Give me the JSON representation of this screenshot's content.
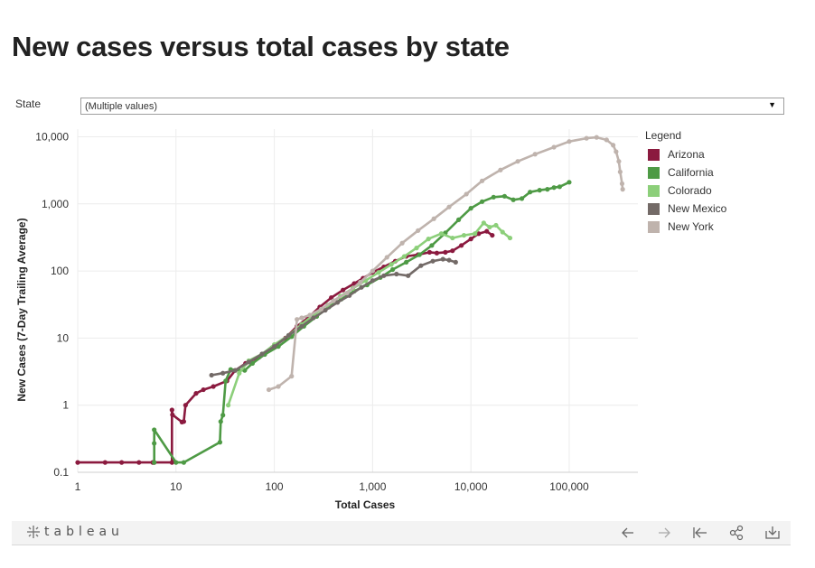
{
  "page": {
    "title": "New cases versus total cases by state"
  },
  "filter": {
    "label": "State",
    "value": "(Multiple values)"
  },
  "legend": {
    "title": "Legend"
  },
  "toolbar": {
    "brand": "+ t a b l e a u",
    "buttons": [
      "undo",
      "redo",
      "revert",
      "share",
      "download"
    ]
  },
  "chart_data": {
    "type": "line",
    "xlabel": "Total Cases",
    "ylabel": "New Cases (7-Day Trailing Average)",
    "x_scale": "log",
    "y_scale": "log",
    "xlim": [
      1,
      500000
    ],
    "ylim": [
      0.1,
      13000
    ],
    "x_ticks": [
      1,
      10,
      100,
      1000,
      10000,
      100000
    ],
    "x_tick_labels": [
      "1",
      "10",
      "100",
      "1,000",
      "10,000",
      "100,000"
    ],
    "y_ticks": [
      0.1,
      1,
      10,
      100,
      1000,
      10000
    ],
    "y_tick_labels": [
      "0.1",
      "1",
      "10",
      "100",
      "1,000",
      "10,000"
    ],
    "grid": true,
    "legend_position": "right",
    "series": [
      {
        "name": "Arizona",
        "color": "#8b1a3f",
        "points": [
          [
            1,
            0.14
          ],
          [
            1.9,
            0.14
          ],
          [
            2.8,
            0.14
          ],
          [
            4.2,
            0.14
          ],
          [
            5.8,
            0.14
          ],
          [
            6,
            0.14
          ],
          [
            9.1,
            0.14
          ],
          [
            9.1,
            0.85
          ],
          [
            9.2,
            0.72
          ],
          [
            11.5,
            0.56
          ],
          [
            12,
            0.57
          ],
          [
            12.5,
            1.0
          ],
          [
            16,
            1.5
          ],
          [
            19,
            1.7
          ],
          [
            24,
            1.9
          ],
          [
            33,
            2.3
          ],
          [
            40,
            3.3
          ],
          [
            51,
            4.2
          ],
          [
            70,
            5.2
          ],
          [
            95,
            7.2
          ],
          [
            130,
            10
          ],
          [
            170,
            15
          ],
          [
            220,
            20
          ],
          [
            290,
            29
          ],
          [
            380,
            40
          ],
          [
            500,
            52
          ],
          [
            650,
            65
          ],
          [
            800,
            78
          ],
          [
            1000,
            95
          ],
          [
            1300,
            115
          ],
          [
            1700,
            140
          ],
          [
            2200,
            165
          ],
          [
            2900,
            175
          ],
          [
            3800,
            190
          ],
          [
            4500,
            185
          ],
          [
            5500,
            190
          ],
          [
            6500,
            200
          ],
          [
            8000,
            240
          ],
          [
            10000,
            300
          ],
          [
            12000,
            360
          ],
          [
            14500,
            390
          ],
          [
            16500,
            340
          ]
        ]
      },
      {
        "name": "California",
        "color": "#4e9a45",
        "points": [
          [
            6,
            0.14
          ],
          [
            6,
            0.27
          ],
          [
            6,
            0.43
          ],
          [
            10,
            0.14
          ],
          [
            12,
            0.14
          ],
          [
            28,
            0.28
          ],
          [
            28.5,
            0.57
          ],
          [
            30,
            0.71
          ],
          [
            32,
            2.3
          ],
          [
            36,
            3.4
          ],
          [
            50,
            3.3
          ],
          [
            60,
            4.2
          ],
          [
            80,
            5.7
          ],
          [
            110,
            7.5
          ],
          [
            150,
            10.5
          ],
          [
            200,
            15
          ],
          [
            270,
            21
          ],
          [
            360,
            29
          ],
          [
            480,
            38
          ],
          [
            650,
            50
          ],
          [
            880,
            62
          ],
          [
            1200,
            80
          ],
          [
            1600,
            105
          ],
          [
            2200,
            135
          ],
          [
            3000,
            175
          ],
          [
            4000,
            240
          ],
          [
            5500,
            370
          ],
          [
            7500,
            580
          ],
          [
            10000,
            860
          ],
          [
            13000,
            1080
          ],
          [
            17000,
            1260
          ],
          [
            22000,
            1300
          ],
          [
            27000,
            1150
          ],
          [
            33000,
            1200
          ],
          [
            40000,
            1500
          ],
          [
            50000,
            1600
          ],
          [
            60000,
            1650
          ],
          [
            70000,
            1750
          ],
          [
            80000,
            1800
          ],
          [
            100000,
            2100
          ]
        ]
      },
      {
        "name": "Colorado",
        "color": "#8ccf7a",
        "points": [
          [
            34,
            1.0
          ],
          [
            44,
            3.0
          ],
          [
            55,
            4.6
          ],
          [
            75,
            5.8
          ],
          [
            100,
            8
          ],
          [
            140,
            11
          ],
          [
            190,
            16
          ],
          [
            260,
            23
          ],
          [
            350,
            31
          ],
          [
            470,
            42
          ],
          [
            630,
            55
          ],
          [
            850,
            72
          ],
          [
            1150,
            95
          ],
          [
            1550,
            125
          ],
          [
            2100,
            165
          ],
          [
            2800,
            220
          ],
          [
            3700,
            300
          ],
          [
            5000,
            360
          ],
          [
            6500,
            310
          ],
          [
            8500,
            340
          ],
          [
            11000,
            360
          ],
          [
            13500,
            520
          ],
          [
            15500,
            450
          ],
          [
            18000,
            480
          ],
          [
            21000,
            380
          ],
          [
            25000,
            310
          ]
        ]
      },
      {
        "name": "New Mexico",
        "color": "#736a67",
        "points": [
          [
            23,
            2.8
          ],
          [
            30,
            3.0
          ],
          [
            40,
            3.3
          ],
          [
            55,
            4.4
          ],
          [
            75,
            5.8
          ],
          [
            100,
            7.5
          ],
          [
            140,
            11
          ],
          [
            190,
            15
          ],
          [
            250,
            20
          ],
          [
            330,
            26
          ],
          [
            440,
            34
          ],
          [
            580,
            43
          ],
          [
            770,
            57
          ],
          [
            1000,
            72
          ],
          [
            1300,
            85
          ],
          [
            1750,
            90
          ],
          [
            2300,
            85
          ],
          [
            3100,
            120
          ],
          [
            4100,
            140
          ],
          [
            5200,
            150
          ],
          [
            6000,
            145
          ],
          [
            7000,
            135
          ]
        ]
      },
      {
        "name": "New York",
        "color": "#bfb3ad",
        "points": [
          [
            88,
            1.7
          ],
          [
            110,
            1.9
          ],
          [
            150,
            2.7
          ],
          [
            170,
            19
          ],
          [
            190,
            20
          ],
          [
            230,
            22
          ],
          [
            300,
            27
          ],
          [
            400,
            36
          ],
          [
            550,
            47
          ],
          [
            750,
            68
          ],
          [
            1000,
            100
          ],
          [
            1400,
            160
          ],
          [
            2000,
            260
          ],
          [
            2900,
            400
          ],
          [
            4200,
            600
          ],
          [
            6000,
            900
          ],
          [
            9000,
            1400
          ],
          [
            13000,
            2200
          ],
          [
            20000,
            3200
          ],
          [
            30000,
            4300
          ],
          [
            45000,
            5500
          ],
          [
            70000,
            7000
          ],
          [
            100000,
            8500
          ],
          [
            150000,
            9500
          ],
          [
            190000,
            9800
          ],
          [
            240000,
            9000
          ],
          [
            280000,
            7500
          ],
          [
            300000,
            6000
          ],
          [
            320000,
            4300
          ],
          [
            330000,
            3000
          ],
          [
            345000,
            2000
          ],
          [
            350000,
            1650
          ]
        ]
      }
    ]
  }
}
